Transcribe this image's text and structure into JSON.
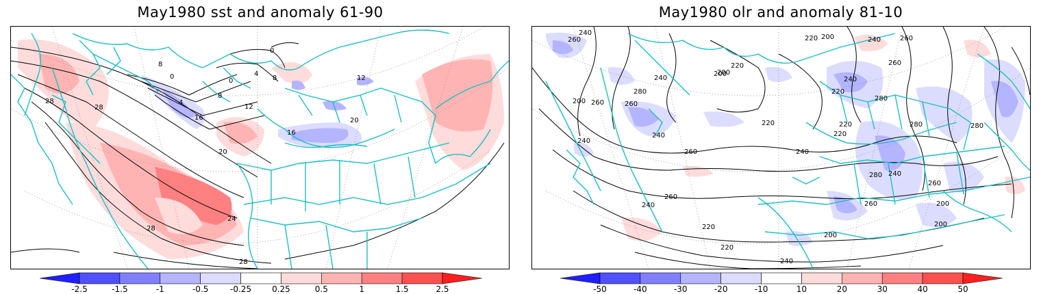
{
  "panels": [
    {
      "title": "May1980 sst and anomaly 61-90",
      "contour_labels": [
        "0",
        "0",
        "0",
        "4",
        "4",
        "8",
        "8",
        "8",
        "12",
        "12",
        "16",
        "16",
        "20",
        "20",
        "24",
        "28",
        "28",
        "28",
        "28"
      ],
      "colorbar": {
        "labels": [
          "-2.5",
          "-1.5",
          "-1",
          "-0.5",
          "-0.25",
          "0.25",
          "0.5",
          "1",
          "1.5",
          "2.5"
        ],
        "colors": [
          "#1f1fff",
          "#5050ff",
          "#8080ff",
          "#b4b4ff",
          "#dcdcff",
          "#ffffff",
          "#ffdcdc",
          "#ffb4b4",
          "#ff8080",
          "#ff5050",
          "#ff1f1f"
        ]
      }
    },
    {
      "title": "May1980 olr and anomaly 81-10",
      "contour_labels": [
        "240",
        "260",
        "200",
        "220",
        "240",
        "260",
        "280",
        "260",
        "240",
        "220",
        "200",
        "220",
        "240",
        "260",
        "280",
        "260",
        "240",
        "220",
        "200",
        "240",
        "260",
        "280",
        "220",
        "200",
        "240",
        "260",
        "280",
        "220",
        "200",
        "240",
        "260",
        "240",
        "220",
        "200",
        "280",
        "260",
        "240",
        "220",
        "200"
      ],
      "colorbar": {
        "labels": [
          "-50",
          "-40",
          "-30",
          "-20",
          "-10",
          "10",
          "20",
          "30",
          "40",
          "50"
        ],
        "colors": [
          "#1f1fff",
          "#5050ff",
          "#8080ff",
          "#b4b4ff",
          "#dcdcff",
          "#ffffff",
          "#ffdcdc",
          "#ffb4b4",
          "#ff8080",
          "#ff5050",
          "#ff1f1f"
        ]
      }
    }
  ],
  "style": {
    "coast_color": "#19bfc4",
    "contour_color": "#000000",
    "grid_color": "#8c8c8c"
  }
}
